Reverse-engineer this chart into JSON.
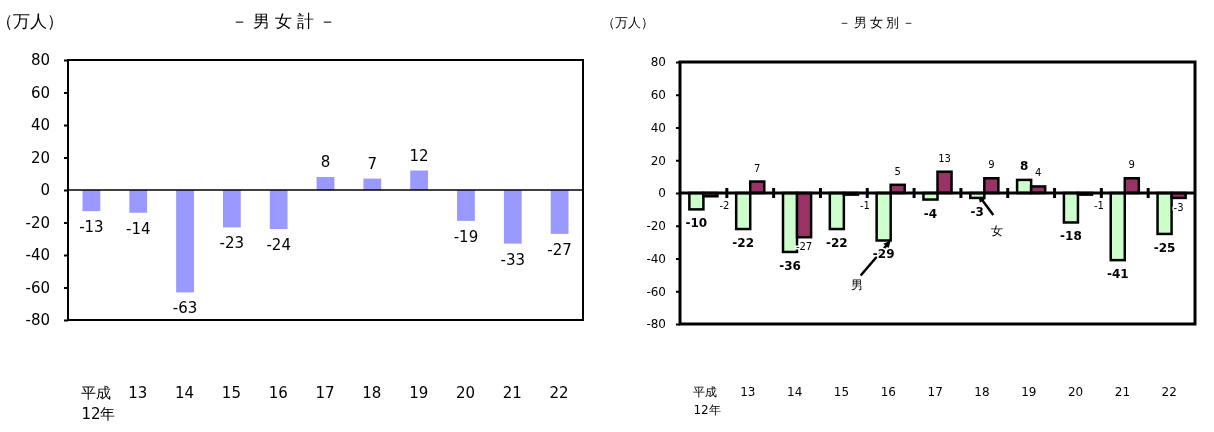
{
  "chart_data": [
    {
      "type": "bar",
      "title": "－男女計－",
      "ylabel": "（万人）",
      "categories": [
        "平成\n12年",
        "13",
        "14",
        "15",
        "16",
        "17",
        "18",
        "19",
        "20",
        "21",
        "22"
      ],
      "series": [
        {
          "color": "#9999ff",
          "values": [
            -13,
            -14,
            -63,
            -23,
            -24,
            8,
            7,
            12,
            -19,
            -33,
            -27
          ]
        }
      ],
      "ylim": [
        -80,
        80
      ],
      "yticks": [
        -80,
        -60,
        -40,
        -20,
        0,
        20,
        40,
        60,
        80
      ],
      "data_labels": true
    },
    {
      "type": "bar",
      "title": "－男女別－",
      "ylabel": "（万人）",
      "categories": [
        "平成\n12年",
        "13",
        "14",
        "15",
        "16",
        "17",
        "18",
        "19",
        "20",
        "21",
        "22"
      ],
      "series": [
        {
          "color": "#ccffcc",
          "values": [
            -10,
            -22,
            -36,
            -22,
            -29,
            -4,
            -3,
            8,
            -18,
            -41,
            -25
          ]
        },
        {
          "color": "#993366",
          "values": [
            -2,
            7,
            -27,
            -1,
            5,
            13,
            9,
            4,
            -1,
            9,
            -3
          ]
        }
      ],
      "ylim": [
        -80,
        80
      ],
      "yticks": [
        -80,
        -60,
        -40,
        -20,
        0,
        20,
        40,
        60,
        80
      ],
      "data_labels": true,
      "annotations": [
        {
          "text": "男",
          "x": "16",
          "y": -29
        },
        {
          "text": "女",
          "x": "18",
          "y": 0
        }
      ]
    }
  ]
}
